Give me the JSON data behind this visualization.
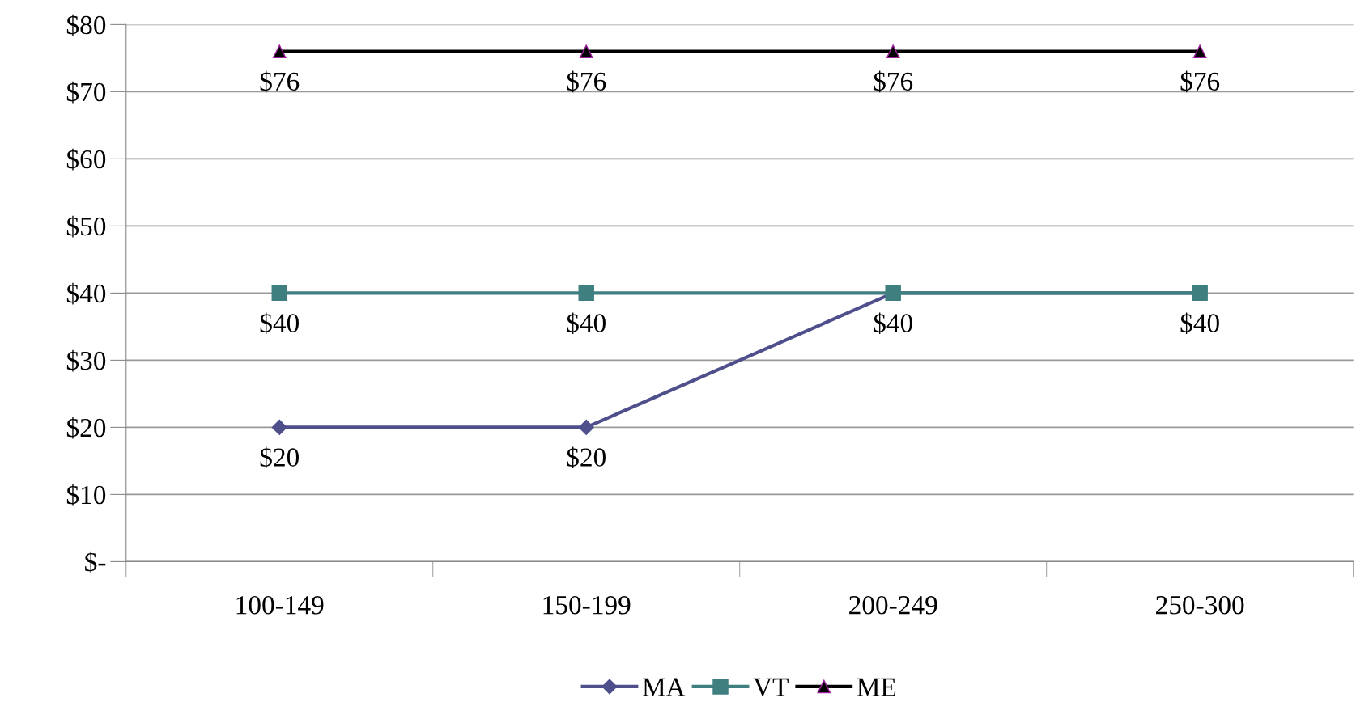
{
  "chart_data": {
    "type": "line",
    "categories": [
      "100-149",
      "150-199",
      "200-249",
      "250-300"
    ],
    "series": [
      {
        "name": "MA",
        "color": "#4f4f8c",
        "marker": "diamond",
        "values": [
          20,
          20,
          40,
          40
        ],
        "value_labels": [
          "$20",
          "$20",
          null,
          null
        ]
      },
      {
        "name": "VT",
        "color": "#3f7f80",
        "marker": "square",
        "values": [
          40,
          40,
          40,
          40
        ],
        "value_labels": [
          "$40",
          "$40",
          "$40",
          "$40"
        ]
      },
      {
        "name": "ME",
        "color": "#000000",
        "marker": "triangle",
        "values": [
          76,
          76,
          76,
          76
        ],
        "value_labels": [
          "$76",
          "$76",
          "$76",
          "$76"
        ]
      }
    ],
    "ylim": [
      0,
      80
    ],
    "yticks": [
      {
        "value": 0,
        "label": "$-"
      },
      {
        "value": 10,
        "label": "$10"
      },
      {
        "value": 20,
        "label": "$20"
      },
      {
        "value": 30,
        "label": "$30"
      },
      {
        "value": 40,
        "label": "$40"
      },
      {
        "value": 50,
        "label": "$50"
      },
      {
        "value": 60,
        "label": "$60"
      },
      {
        "value": 70,
        "label": "$70"
      },
      {
        "value": 80,
        "label": "$80"
      }
    ],
    "grid": "y",
    "legend": "bottom",
    "line_style": "solid"
  }
}
